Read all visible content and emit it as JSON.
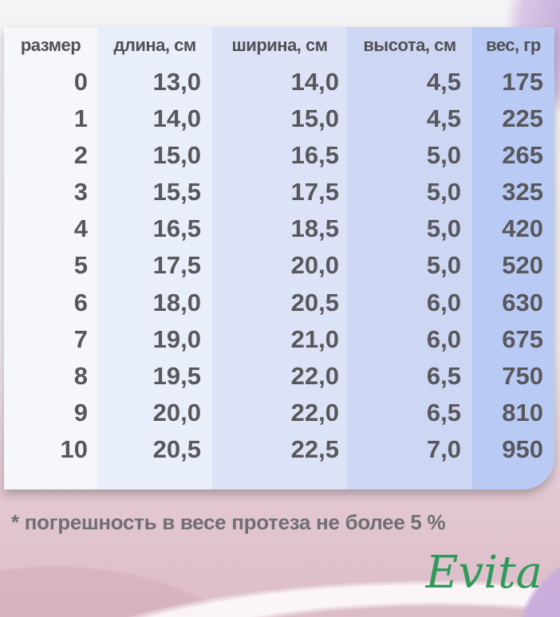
{
  "table": {
    "headers": [
      "размер",
      "длина, см",
      "ширина, см",
      "высота, см",
      "вес, гр"
    ],
    "columns": [
      [
        "0",
        "1",
        "2",
        "3",
        "4",
        "5",
        "6",
        "7",
        "8",
        "9",
        "10"
      ],
      [
        "13,0",
        "14,0",
        "15,0",
        "15,5",
        "16,5",
        "17,5",
        "18,0",
        "19,0",
        "19,5",
        "20,0",
        "20,5"
      ],
      [
        "14,0",
        "15,0",
        "16,5",
        "17,5",
        "18,5",
        "20,0",
        "20,5",
        "21,0",
        "22,0",
        "22,0",
        "22,5"
      ],
      [
        "4,5",
        "4,5",
        "5,0",
        "5,0",
        "5,0",
        "5,0",
        "6,0",
        "6,0",
        "6,5",
        "6,5",
        "7,0"
      ],
      [
        "175",
        "225",
        "265",
        "325",
        "420",
        "520",
        "630",
        "675",
        "750",
        "810",
        "950"
      ]
    ]
  },
  "note": "* погрешность в весе протеза не более 5 %",
  "logo": "Evita",
  "colors": {
    "text": "#58585c",
    "logo": "#2e9a5a"
  }
}
